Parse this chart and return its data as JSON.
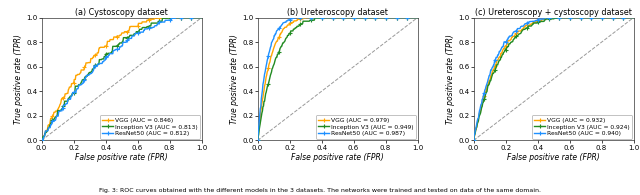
{
  "plots": [
    {
      "title": "(a) Cystoscopy dataset",
      "curves": [
        {
          "label": "VGG (AUC = 0.846)",
          "color": "#FFA500",
          "auc": 0.846,
          "power": 2.8,
          "noise": 0.018,
          "seed": 11
        },
        {
          "label": "Inception V3 (AUC = 0.813)",
          "color": "#228B22",
          "auc": 0.813,
          "power": 2.2,
          "noise": 0.014,
          "seed": 22
        },
        {
          "label": "ResNet50 (AUC = 0.812)",
          "color": "#1E90FF",
          "auc": 0.812,
          "power": 2.1,
          "noise": 0.014,
          "seed": 33
        }
      ]
    },
    {
      "title": "(b) Ureteroscopy dataset",
      "curves": [
        {
          "label": "VGG (AUC = 0.979)",
          "color": "#FFA500",
          "auc": 0.979,
          "power": 13.0,
          "noise": 0.006,
          "seed": 44
        },
        {
          "label": "Inception V3 (AUC = 0.949)",
          "color": "#228B22",
          "auc": 0.949,
          "power": 9.0,
          "noise": 0.006,
          "seed": 55
        },
        {
          "label": "ResNet50 (AUC = 0.987)",
          "color": "#1E90FF",
          "auc": 0.987,
          "power": 17.0,
          "noise": 0.006,
          "seed": 66
        }
      ]
    },
    {
      "title": "(c) Ureteroscopy + cystoscopy dataset",
      "curves": [
        {
          "label": "VGG (AUC = 0.932)",
          "color": "#FFA500",
          "auc": 0.932,
          "power": 6.5,
          "noise": 0.007,
          "seed": 77
        },
        {
          "label": "Inception V3 (AUC = 0.924)",
          "color": "#228B22",
          "auc": 0.924,
          "power": 6.0,
          "noise": 0.007,
          "seed": 88
        },
        {
          "label": "ResNet50 (AUC = 0.940)",
          "color": "#1E90FF",
          "auc": 0.94,
          "power": 7.2,
          "noise": 0.007,
          "seed": 99
        }
      ]
    }
  ],
  "xlabel": "False positive rate (FPR)",
  "ylabel": "True positive rate (TPR)",
  "caption": "Fig. 3: ROC curves obtained with the different models in the 3 datasets. The networks were trained and tested on data of the same domain.",
  "marker": "+",
  "marker_size": 3.5,
  "marker_interval": 20,
  "line_width": 1.0,
  "background_color": "#ffffff",
  "diagonal_color": "#999999",
  "tick_labels": [
    "0.0",
    "0.2",
    "0.4",
    "0.6",
    "0.8",
    "1.0"
  ],
  "tick_values": [
    0.0,
    0.2,
    0.4,
    0.6,
    0.8,
    1.0
  ]
}
